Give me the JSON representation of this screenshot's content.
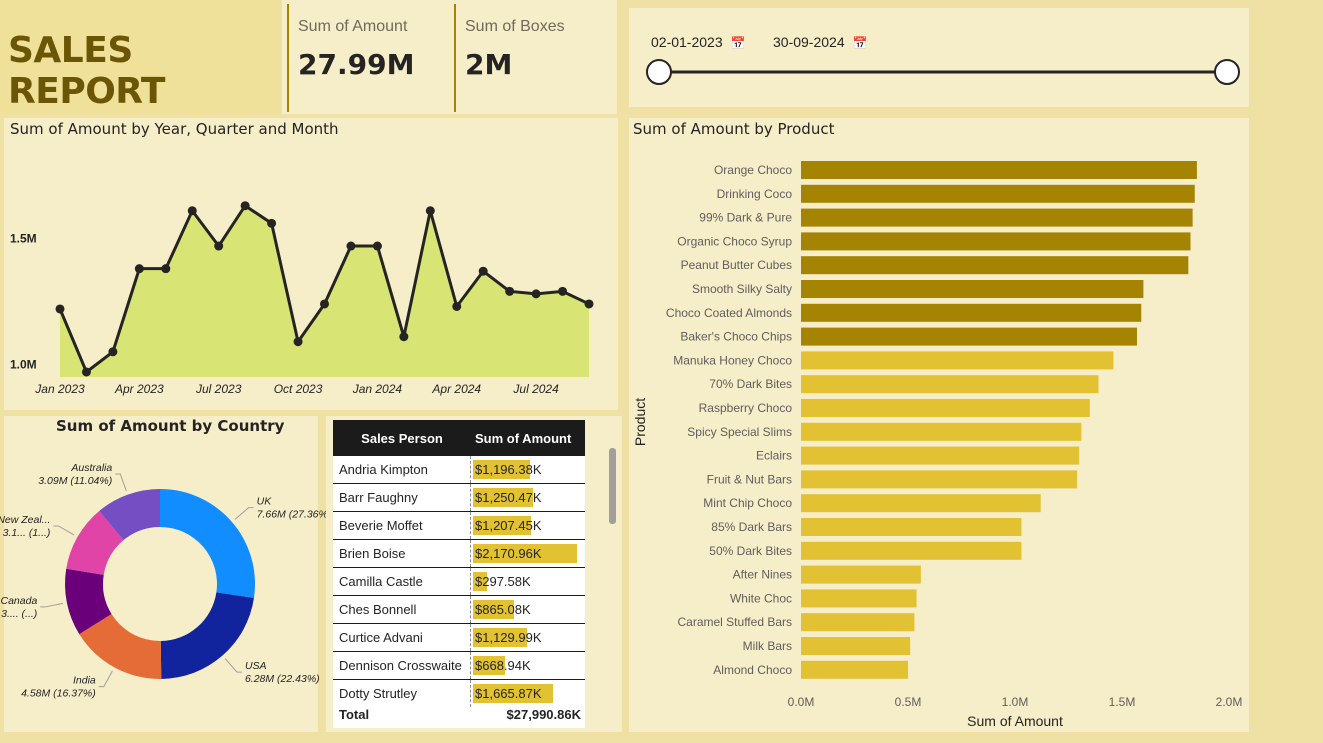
{
  "report": {
    "title": "SALES REPORT",
    "kpis": [
      {
        "label": "Sum of Amount",
        "value": "27.99M"
      },
      {
        "label": "Sum of Boxes",
        "value": "2M"
      }
    ]
  },
  "date_slicer": {
    "start": "02-01-2023",
    "end": "30-09-2024",
    "start_fraction": 0,
    "end_fraction": 1
  },
  "colors": {
    "area_fill": "#d8e575",
    "line": "#252423",
    "bar_dark": "#a58403",
    "bar_light": "#e2c233",
    "accent": "#6b5605"
  },
  "chart_data": [
    {
      "type": "area",
      "title": "Sum of Amount by Year, Quarter and Month",
      "x_tick_labels": [
        "Jan 2023",
        "Apr 2023",
        "Jul 2023",
        "Oct 2023",
        "Jan 2024",
        "Apr 2024",
        "Jul 2024"
      ],
      "y_tick_labels": [
        "1.0M",
        "1.5M"
      ],
      "y_ticks": [
        1.0,
        1.5
      ],
      "ylim": [
        0.95,
        1.74
      ],
      "x": [
        "Jan 2023",
        "Feb 2023",
        "Mar 2023",
        "Apr 2023",
        "May 2023",
        "Jun 2023",
        "Jul 2023",
        "Aug 2023",
        "Sep 2023",
        "Oct 2023",
        "Nov 2023",
        "Dec 2023",
        "Jan 2024",
        "Feb 2024",
        "Mar 2024",
        "Apr 2024",
        "May 2024",
        "Jun 2024",
        "Jul 2024",
        "Aug 2024",
        "Sep 2024"
      ],
      "values": [
        1.22,
        0.97,
        1.05,
        1.38,
        1.38,
        1.61,
        1.47,
        1.63,
        1.56,
        1.09,
        1.24,
        1.47,
        1.47,
        1.11,
        1.61,
        1.23,
        1.37,
        1.29,
        1.28,
        1.29,
        1.24
      ],
      "units": "M"
    },
    {
      "type": "pie",
      "title": "Sum of Amount by Country",
      "labels": [
        {
          "name": "UK",
          "value": "7.66M (27.36%)"
        },
        {
          "name": "USA",
          "value": "6.28M (22.43%)"
        },
        {
          "name": "India",
          "value": "4.58M (16.37%)"
        },
        {
          "name": "Canada",
          "value": "3.... (...)"
        },
        {
          "name": "New Zeal...",
          "value": "3.1... (1...)"
        },
        {
          "name": "Australia",
          "value": "3.09M (11.04%)"
        }
      ],
      "values": [
        27.36,
        22.43,
        16.37,
        11.4,
        11.4,
        11.04
      ],
      "colors": [
        "#118dff",
        "#12239e",
        "#e66c37",
        "#6b007b",
        "#e044a7",
        "#744ec2"
      ]
    },
    {
      "type": "bar",
      "title": "Sum of Amount by Product",
      "xlabel": "Sum of Amount",
      "ylabel": "Product",
      "x_tick_labels": [
        "0.0M",
        "0.5M",
        "1.0M",
        "1.5M",
        "2.0M"
      ],
      "x_ticks": [
        0,
        0.5,
        1.0,
        1.5,
        2.0
      ],
      "xlim": [
        0,
        2.0
      ],
      "categories": [
        "Orange Choco",
        "Drinking Coco",
        "99% Dark & Pure",
        "Organic Choco Syrup",
        "Peanut Butter Cubes",
        "Smooth Silky Salty",
        "Choco Coated Almonds",
        "Baker's Choco Chips",
        "Manuka Honey Choco",
        "70% Dark Bites",
        "Raspberry Choco",
        "Spicy Special Slims",
        "Eclairs",
        "Fruit & Nut Bars",
        "Mint Chip Choco",
        "85% Dark Bars",
        "50% Dark Bites",
        "After Nines",
        "White Choc",
        "Caramel Stuffed Bars",
        "Milk Bars",
        "Almond Choco"
      ],
      "values": [
        1.85,
        1.84,
        1.83,
        1.82,
        1.81,
        1.6,
        1.59,
        1.57,
        1.46,
        1.39,
        1.35,
        1.31,
        1.3,
        1.29,
        1.12,
        1.03,
        1.03,
        0.56,
        0.54,
        0.53,
        0.51,
        0.5
      ],
      "highlight_count": 8
    },
    {
      "type": "table",
      "columns": [
        "Sales Person",
        "Sum of Amount"
      ],
      "rows": [
        {
          "name": "Andria Kimpton",
          "amount": "$1,196.38K",
          "value": 1196.38
        },
        {
          "name": "Barr Faughny",
          "amount": "$1,250.47K",
          "value": 1250.47
        },
        {
          "name": "Beverie Moffet",
          "amount": "$1,207.45K",
          "value": 1207.45
        },
        {
          "name": "Brien Boise",
          "amount": "$2,170.96K",
          "value": 2170.96
        },
        {
          "name": "Camilla Castle",
          "amount": "$297.58K",
          "value": 297.58
        },
        {
          "name": "Ches Bonnell",
          "amount": "$865.08K",
          "value": 865.08
        },
        {
          "name": "Curtice Advani",
          "amount": "$1,129.99K",
          "value": 1129.99
        },
        {
          "name": "Dennison Crosswaite",
          "amount": "$668.94K",
          "value": 668.94
        },
        {
          "name": "Dotty Strutley",
          "amount": "$1,665.87K",
          "value": 1665.87
        }
      ],
      "total_label": "Total",
      "total_value": "$27,990.86K"
    }
  ]
}
